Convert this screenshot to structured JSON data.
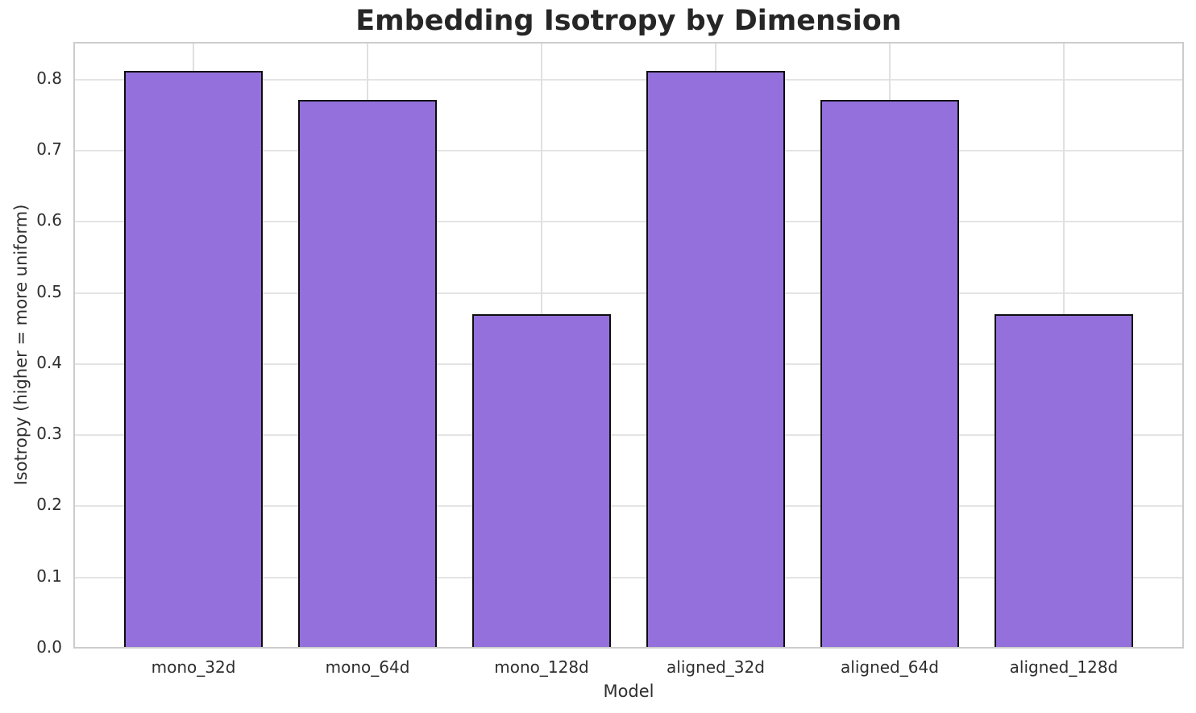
{
  "chart": {
    "title": "Embedding Isotropy by Dimension",
    "xlabel": "Model",
    "ylabel": "Isotropy (higher = more uniform)"
  },
  "chart_data": {
    "type": "bar",
    "title": "Embedding Isotropy by Dimension",
    "xlabel": "Model",
    "ylabel": "Isotropy (higher = more uniform)",
    "categories": [
      "mono_32d",
      "mono_64d",
      "mono_128d",
      "aligned_32d",
      "aligned_64d",
      "aligned_128d"
    ],
    "values": [
      0.812,
      0.772,
      0.47,
      0.812,
      0.772,
      0.47
    ],
    "yticks": [
      0.0,
      0.1,
      0.2,
      0.3,
      0.4,
      0.5,
      0.6,
      0.7,
      0.8
    ],
    "ylim": [
      0,
      0.853
    ],
    "grid": true,
    "legend": "none",
    "bar_color": "#9370DB",
    "bar_edge_color": "#0d0d0d",
    "grid_color": "#e4e4e4",
    "frame_color": "#cccccc"
  }
}
